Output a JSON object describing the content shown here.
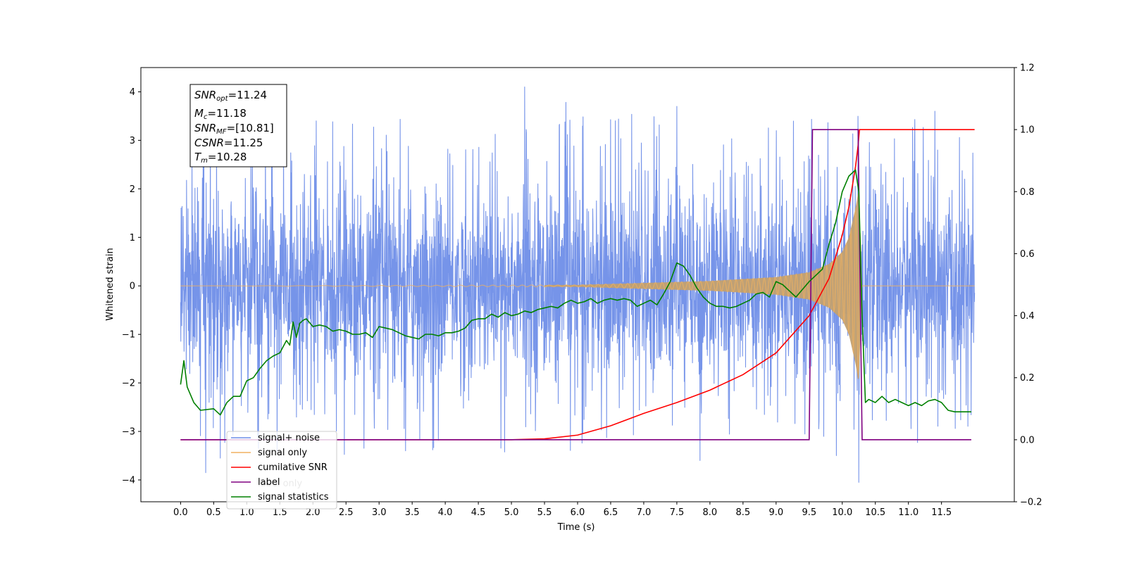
{
  "colors": {
    "signal_noise": "#6f8ee8",
    "signal_only": "#f0b060",
    "signal_fill": "#c2a070",
    "cumulative_snr": "#ff0000",
    "label": "#800080",
    "signal_statistics": "#008000"
  },
  "chart_data": {
    "type": "line",
    "xlabel": "Time (s)",
    "ylabel": "Whitened strain",
    "xlim": [
      -0.6,
      12.6
    ],
    "ylim": [
      -4.45,
      4.5
    ],
    "ylim_right": [
      -0.2,
      1.2
    ],
    "x_ticks": [
      "0.0",
      "0.5",
      "1.0",
      "1.5",
      "2.0",
      "2.5",
      "3.0",
      "3.5",
      "4.0",
      "4.5",
      "5.0",
      "5.5",
      "6.0",
      "6.5",
      "7.0",
      "7.5",
      "8.0",
      "8.5",
      "9.0",
      "9.5",
      "10.0",
      "10.5",
      "11.0",
      "11.5"
    ],
    "y_ticks": [
      "4",
      "3",
      "2",
      "1",
      "0",
      "−1",
      "−2",
      "−3",
      "−4"
    ],
    "y_ticks_right": [
      "1.2",
      "1.0",
      "0.8",
      "0.6",
      "0.4",
      "0.2",
      "0.0",
      "−0.2"
    ],
    "annotation": {
      "snr_opt": {
        "main": "SNR",
        "sub": "opt",
        "rest": "=11.24"
      },
      "mc": {
        "main": "M",
        "sub": "c",
        "rest": "=11.18"
      },
      "snr_mf": {
        "main": "SNR",
        "sub": "MF",
        "rest": "=[10.81]"
      },
      "csnr": {
        "main": "CSNR",
        "rest": "=11.25"
      },
      "tm": {
        "main": "T",
        "sub": "m",
        "rest": "=10.28"
      }
    },
    "legend": [
      "signal+ noise",
      "signal only",
      "cumilative SNR",
      "label",
      "label only",
      "signal statistics"
    ],
    "series": [
      {
        "name": "signal+ noise",
        "axis": "left",
        "x_range": [
          0.0,
          12.0
        ],
        "typical_band": [
          -1.6,
          1.6
        ],
        "peaks": [
          4.1,
          3.7,
          3.6,
          3.5,
          3.4
        ],
        "troughs": [
          -4.05,
          -3.85,
          -3.6,
          -3.55,
          -3.4
        ]
      },
      {
        "name": "signal only",
        "axis": "left",
        "x_range": [
          0.0,
          12.0
        ],
        "envelope_x": [
          0.0,
          6.0,
          7.0,
          8.0,
          9.0,
          9.5,
          9.8,
          10.0,
          10.1,
          10.2,
          10.25,
          10.3,
          12.0
        ],
        "envelope_y": [
          0.0,
          0.02,
          0.06,
          0.1,
          0.18,
          0.28,
          0.45,
          0.7,
          1.0,
          1.6,
          2.0,
          0.0,
          0.0
        ]
      },
      {
        "name": "cumilative SNR",
        "axis": "right",
        "x": [
          0.0,
          5.0,
          5.5,
          6.0,
          6.5,
          7.0,
          7.5,
          8.0,
          8.5,
          9.0,
          9.5,
          9.8,
          10.0,
          10.1,
          10.2,
          10.24,
          10.26,
          12.0
        ],
        "y": [
          0.0,
          0.0,
          0.003,
          0.015,
          0.045,
          0.085,
          0.12,
          0.16,
          0.21,
          0.28,
          0.4,
          0.52,
          0.66,
          0.75,
          0.88,
          0.95,
          1.0,
          1.0
        ]
      },
      {
        "name": "label",
        "axis": "right",
        "x": [
          0.0,
          9.5,
          9.55,
          10.24,
          10.3,
          11.95
        ],
        "y": [
          0.0,
          0.0,
          1.0,
          1.0,
          0.0,
          0.0
        ]
      },
      {
        "name": "signal statistics",
        "axis": "right",
        "x": [
          0.0,
          0.05,
          0.1,
          0.2,
          0.3,
          0.5,
          0.6,
          0.7,
          0.8,
          0.9,
          1.0,
          1.1,
          1.2,
          1.3,
          1.4,
          1.5,
          1.6,
          1.65,
          1.7,
          1.75,
          1.8,
          1.85,
          1.9,
          2.0,
          2.1,
          2.2,
          2.3,
          2.4,
          2.5,
          2.6,
          2.7,
          2.8,
          2.9,
          3.0,
          3.1,
          3.2,
          3.3,
          3.4,
          3.5,
          3.6,
          3.7,
          3.8,
          3.9,
          4.0,
          4.1,
          4.2,
          4.3,
          4.4,
          4.5,
          4.6,
          4.7,
          4.8,
          4.9,
          5.0,
          5.1,
          5.2,
          5.3,
          5.4,
          5.5,
          5.6,
          5.7,
          5.8,
          5.9,
          6.0,
          6.1,
          6.2,
          6.3,
          6.4,
          6.5,
          6.6,
          6.7,
          6.8,
          6.9,
          7.0,
          7.1,
          7.2,
          7.3,
          7.4,
          7.5,
          7.6,
          7.7,
          7.8,
          7.9,
          8.0,
          8.1,
          8.2,
          8.3,
          8.4,
          8.5,
          8.6,
          8.7,
          8.8,
          8.9,
          9.0,
          9.1,
          9.2,
          9.3,
          9.4,
          9.5,
          9.6,
          9.7,
          9.8,
          9.9,
          10.0,
          10.1,
          10.2,
          10.25,
          10.3,
          10.35,
          10.4,
          10.5,
          10.6,
          10.7,
          10.8,
          10.9,
          11.0,
          11.1,
          11.2,
          11.3,
          11.4,
          11.5,
          11.6,
          11.7,
          11.8,
          11.9,
          11.95
        ],
        "y": [
          0.178,
          0.255,
          0.17,
          0.12,
          0.095,
          0.1,
          0.08,
          0.12,
          0.14,
          0.14,
          0.19,
          0.2,
          0.23,
          0.255,
          0.27,
          0.28,
          0.32,
          0.305,
          0.38,
          0.33,
          0.375,
          0.385,
          0.39,
          0.365,
          0.37,
          0.365,
          0.35,
          0.355,
          0.35,
          0.34,
          0.34,
          0.345,
          0.33,
          0.365,
          0.36,
          0.355,
          0.345,
          0.335,
          0.33,
          0.325,
          0.34,
          0.34,
          0.335,
          0.345,
          0.345,
          0.35,
          0.36,
          0.385,
          0.39,
          0.39,
          0.405,
          0.395,
          0.41,
          0.4,
          0.405,
          0.415,
          0.41,
          0.42,
          0.425,
          0.43,
          0.425,
          0.44,
          0.45,
          0.44,
          0.445,
          0.455,
          0.44,
          0.45,
          0.455,
          0.45,
          0.455,
          0.45,
          0.43,
          0.44,
          0.45,
          0.435,
          0.47,
          0.51,
          0.57,
          0.56,
          0.53,
          0.49,
          0.46,
          0.44,
          0.43,
          0.43,
          0.425,
          0.43,
          0.44,
          0.45,
          0.47,
          0.475,
          0.46,
          0.51,
          0.5,
          0.48,
          0.46,
          0.485,
          0.51,
          0.53,
          0.55,
          0.63,
          0.7,
          0.8,
          0.85,
          0.87,
          0.8,
          0.4,
          0.12,
          0.13,
          0.12,
          0.14,
          0.12,
          0.13,
          0.12,
          0.11,
          0.12,
          0.11,
          0.125,
          0.13,
          0.12,
          0.095,
          0.09,
          0.09,
          0.09,
          0.09
        ]
      }
    ]
  }
}
